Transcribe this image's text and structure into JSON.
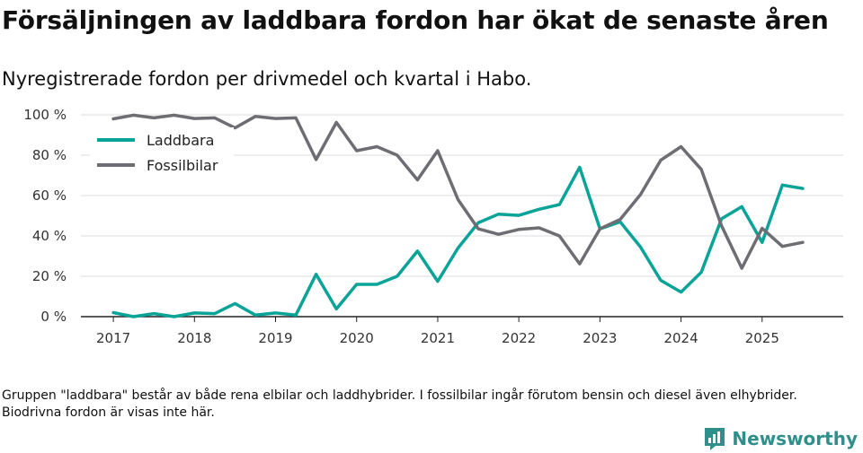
{
  "header": {
    "title": "Försäljningen av laddbara fordon har ökat de senaste åren",
    "subtitle": "Nyregistrerade fordon per drivmedel och kvartal i Habo."
  },
  "footnote": "Gruppen \"laddbara\" består av både rena elbilar och laddhybrider. I fossilbilar ingår förutom bensin och diesel även elhybrider. Biodrivna fordon är visas inte här.",
  "brand": {
    "name": "Newsworthy"
  },
  "colors": {
    "laddbara": "#0aa398",
    "fossil": "#6e6d73",
    "grid": "#dddddd",
    "axis": "#222222"
  },
  "chart_data": {
    "type": "line",
    "title": "Försäljningen av laddbara fordon har ökat de senaste åren",
    "x_start_year": 2017,
    "x_step": 0.25,
    "xticks": [
      2017,
      2018,
      2019,
      2020,
      2021,
      2022,
      2023,
      2024,
      2025
    ],
    "xtick_labels": [
      "2017",
      "2018",
      "2019",
      "2020",
      "2021",
      "2022",
      "2023",
      "2024",
      "2025"
    ],
    "xlim": [
      2016.6,
      2026.0
    ],
    "ylim": [
      0,
      100
    ],
    "yticks": [
      0,
      20,
      40,
      60,
      80,
      100
    ],
    "ytick_labels": [
      "0 %",
      "20 %",
      "40 %",
      "60 %",
      "80 %",
      "100 %"
    ],
    "legend_position": "top-left",
    "series": [
      {
        "name": "Laddbara",
        "color": "#0aa398",
        "values": [
          2,
          0,
          1.5,
          0,
          1.8,
          1.5,
          6.5,
          0.8,
          1.8,
          0.8,
          21,
          3.8,
          16,
          16,
          20,
          32.5,
          17.5,
          34,
          46.5,
          50.8,
          50.2,
          53.2,
          55.5,
          74,
          43.5,
          47,
          34.5,
          18,
          12.2,
          22,
          48.5,
          54.5,
          36.8,
          65.2,
          63.5
        ]
      },
      {
        "name": "Fossilbilar",
        "color": "#6e6d73",
        "values": [
          98,
          99.8,
          98.5,
          99.8,
          98.2,
          98.5,
          93.5,
          99.2,
          98.2,
          98.5,
          77.8,
          96.2,
          82.2,
          84.2,
          80,
          67.8,
          82.2,
          58,
          43.5,
          40.8,
          43.2,
          44,
          40,
          26.2,
          43.5,
          48.2,
          60.5,
          77.5,
          84.2,
          73,
          45,
          24,
          43.8,
          34.8,
          36.8
        ]
      }
    ]
  }
}
